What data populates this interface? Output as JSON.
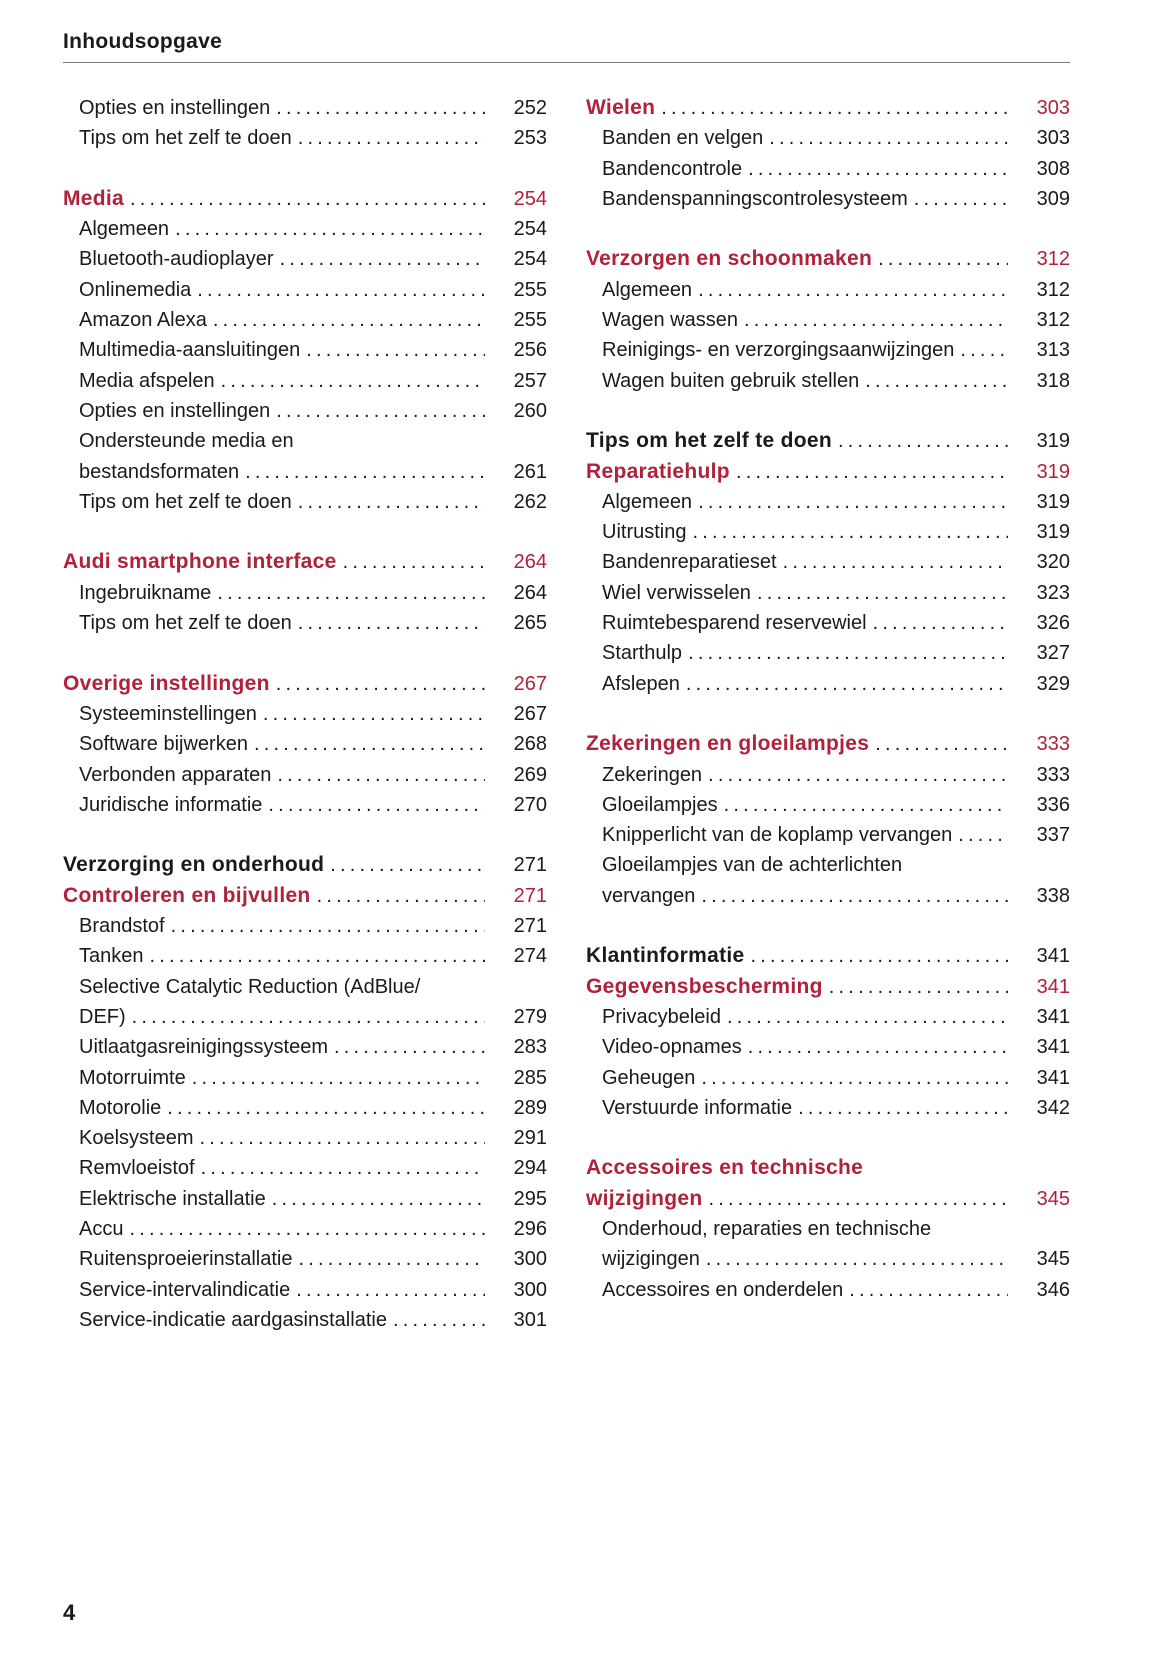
{
  "header": {
    "title": "Inhoudsopgave"
  },
  "footer": {
    "page_number": "4"
  },
  "colors": {
    "accent": "#b0213a",
    "text": "#1a1a1a"
  },
  "columns": [
    {
      "sections": [
        {
          "entries": [
            {
              "style": "sub",
              "text": [
                "Opties en instellingen"
              ],
              "page": "252"
            },
            {
              "style": "sub",
              "text": [
                "Tips om het zelf te doen"
              ],
              "page": "253"
            }
          ]
        },
        {
          "entries": [
            {
              "style": "red",
              "text": [
                "Media"
              ],
              "page": "254"
            },
            {
              "style": "sub",
              "text": [
                "Algemeen"
              ],
              "page": "254"
            },
            {
              "style": "sub",
              "text": [
                "Bluetooth-audioplayer"
              ],
              "page": "254"
            },
            {
              "style": "sub",
              "text": [
                "Onlinemedia"
              ],
              "page": "255"
            },
            {
              "style": "sub",
              "text": [
                "Amazon Alexa"
              ],
              "page": "255"
            },
            {
              "style": "sub",
              "text": [
                "Multimedia-aansluitingen"
              ],
              "page": "256"
            },
            {
              "style": "sub",
              "text": [
                "Media afspelen"
              ],
              "page": "257"
            },
            {
              "style": "sub",
              "text": [
                "Opties en instellingen"
              ],
              "page": "260"
            },
            {
              "style": "sub",
              "text": [
                "Ondersteunde media en",
                "bestandsformaten"
              ],
              "page": "261"
            },
            {
              "style": "sub",
              "text": [
                "Tips om het zelf te doen"
              ],
              "page": "262"
            }
          ]
        },
        {
          "entries": [
            {
              "style": "red",
              "text": [
                "Audi smartphone interface"
              ],
              "page": "264"
            },
            {
              "style": "sub",
              "text": [
                "Ingebruikname"
              ],
              "page": "264"
            },
            {
              "style": "sub",
              "text": [
                "Tips om het zelf te doen"
              ],
              "page": "265"
            }
          ]
        },
        {
          "entries": [
            {
              "style": "red",
              "text": [
                "Overige instellingen"
              ],
              "page": "267"
            },
            {
              "style": "sub",
              "text": [
                "Systeeminstellingen"
              ],
              "page": "267"
            },
            {
              "style": "sub",
              "text": [
                "Software bijwerken"
              ],
              "page": "268"
            },
            {
              "style": "sub",
              "text": [
                "Verbonden apparaten"
              ],
              "page": "269"
            },
            {
              "style": "sub",
              "text": [
                "Juridische informatie"
              ],
              "page": "270"
            }
          ]
        },
        {
          "entries": [
            {
              "style": "black",
              "text": [
                "Verzorging en onderhoud"
              ],
              "page": "271"
            },
            {
              "style": "red",
              "text": [
                "Controleren en bijvullen"
              ],
              "page": "271"
            },
            {
              "style": "sub",
              "text": [
                "Brandstof"
              ],
              "page": "271"
            },
            {
              "style": "sub",
              "text": [
                "Tanken"
              ],
              "page": "274"
            },
            {
              "style": "sub",
              "text": [
                "Selective Catalytic Reduction (AdBlue/",
                "DEF)"
              ],
              "page": "279"
            },
            {
              "style": "sub",
              "text": [
                "Uitlaatgasreinigingssysteem"
              ],
              "page": "283"
            },
            {
              "style": "sub",
              "text": [
                "Motorruimte"
              ],
              "page": "285"
            },
            {
              "style": "sub",
              "text": [
                "Motorolie"
              ],
              "page": "289"
            },
            {
              "style": "sub",
              "text": [
                "Koelsysteem"
              ],
              "page": "291"
            },
            {
              "style": "sub",
              "text": [
                "Remvloeistof"
              ],
              "page": "294"
            },
            {
              "style": "sub",
              "text": [
                "Elektrische installatie"
              ],
              "page": "295"
            },
            {
              "style": "sub",
              "text": [
                "Accu"
              ],
              "page": "296"
            },
            {
              "style": "sub",
              "text": [
                "Ruitensproeierinstallatie"
              ],
              "page": "300"
            },
            {
              "style": "sub",
              "text": [
                "Service-intervalindicatie"
              ],
              "page": "300"
            },
            {
              "style": "sub",
              "text": [
                "Service-indicatie aardgasinstallatie"
              ],
              "page": "301"
            }
          ]
        }
      ]
    },
    {
      "sections": [
        {
          "entries": [
            {
              "style": "red",
              "text": [
                "Wielen"
              ],
              "page": "303"
            },
            {
              "style": "sub",
              "text": [
                "Banden en velgen"
              ],
              "page": "303"
            },
            {
              "style": "sub",
              "text": [
                "Bandencontrole"
              ],
              "page": "308"
            },
            {
              "style": "sub",
              "text": [
                "Bandenspanningscontrolesysteem"
              ],
              "page": "309"
            }
          ]
        },
        {
          "entries": [
            {
              "style": "red",
              "text": [
                "Verzorgen en schoonmaken"
              ],
              "page": "312"
            },
            {
              "style": "sub",
              "text": [
                "Algemeen"
              ],
              "page": "312"
            },
            {
              "style": "sub",
              "text": [
                "Wagen wassen"
              ],
              "page": "312"
            },
            {
              "style": "sub",
              "text": [
                "Reinigings- en verzorgingsaanwijzingen"
              ],
              "page": "313"
            },
            {
              "style": "sub",
              "text": [
                "Wagen buiten gebruik stellen"
              ],
              "page": "318"
            }
          ]
        },
        {
          "entries": [
            {
              "style": "black",
              "text": [
                "Tips om het zelf te doen"
              ],
              "page": "319"
            },
            {
              "style": "red",
              "text": [
                "Reparatiehulp"
              ],
              "page": "319"
            },
            {
              "style": "sub",
              "text": [
                "Algemeen"
              ],
              "page": "319"
            },
            {
              "style": "sub",
              "text": [
                "Uitrusting"
              ],
              "page": "319"
            },
            {
              "style": "sub",
              "text": [
                "Bandenreparatieset"
              ],
              "page": "320"
            },
            {
              "style": "sub",
              "text": [
                "Wiel verwisselen"
              ],
              "page": "323"
            },
            {
              "style": "sub",
              "text": [
                "Ruimtebesparend reservewiel"
              ],
              "page": "326"
            },
            {
              "style": "sub",
              "text": [
                "Starthulp"
              ],
              "page": "327"
            },
            {
              "style": "sub",
              "text": [
                "Afslepen"
              ],
              "page": "329"
            }
          ]
        },
        {
          "entries": [
            {
              "style": "red",
              "text": [
                "Zekeringen en gloeilampjes"
              ],
              "page": "333"
            },
            {
              "style": "sub",
              "text": [
                "Zekeringen"
              ],
              "page": "333"
            },
            {
              "style": "sub",
              "text": [
                "Gloeilampjes"
              ],
              "page": "336"
            },
            {
              "style": "sub",
              "text": [
                "Knipperlicht van de koplamp vervangen"
              ],
              "page": "337"
            },
            {
              "style": "sub",
              "text": [
                "Gloeilampjes van de achterlichten",
                "vervangen"
              ],
              "page": "338"
            }
          ]
        },
        {
          "entries": [
            {
              "style": "black",
              "text": [
                "Klantinformatie"
              ],
              "page": "341"
            },
            {
              "style": "red",
              "text": [
                "Gegevensbescherming"
              ],
              "page": "341"
            },
            {
              "style": "sub",
              "text": [
                "Privacybeleid"
              ],
              "page": "341"
            },
            {
              "style": "sub",
              "text": [
                "Video-opnames"
              ],
              "page": "341"
            },
            {
              "style": "sub",
              "text": [
                "Geheugen"
              ],
              "page": "341"
            },
            {
              "style": "sub",
              "text": [
                "Verstuurde informatie"
              ],
              "page": "342"
            }
          ]
        },
        {
          "entries": [
            {
              "style": "red",
              "text": [
                "Accessoires en technische",
                "wijzigingen"
              ],
              "page": "345"
            },
            {
              "style": "sub",
              "text": [
                "Onderhoud, reparaties en technische",
                "wijzigingen"
              ],
              "page": "345"
            },
            {
              "style": "sub",
              "text": [
                "Accessoires en onderdelen"
              ],
              "page": "346"
            }
          ]
        }
      ]
    }
  ]
}
